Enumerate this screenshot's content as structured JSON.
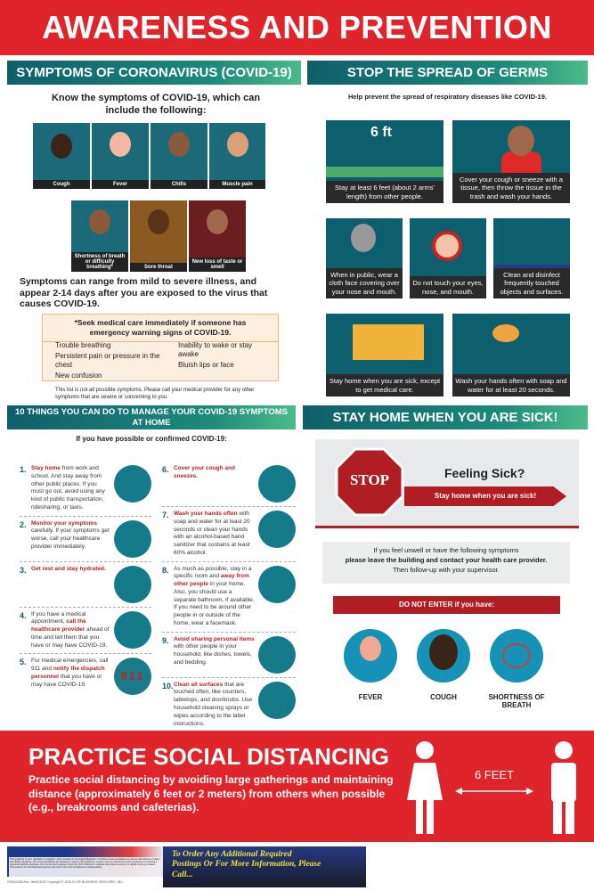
{
  "title": "AWARENESS AND PREVENTION",
  "symptoms": {
    "header": "SYMPTOMS OF CORONAVIRUS (COVID-19)",
    "intro": "Know the symptoms of COVID-19, which can include the following:",
    "tiles": [
      "Cough",
      "Fever",
      "Chills",
      "Muscle pain",
      "Shortness of breath or difficulty breathing*",
      "Sore throat",
      "New loss of taste or smell"
    ],
    "range_text": "Symptoms can range from mild to severe illness, and appear 2-14 days after you are exposed to the virus that causes COVID-19.",
    "warning_title": "*Seek medical care immediately if someone has emergency warning signs of COVID-19.",
    "warning_left": [
      "Trouble breathing",
      "Persistent pain or pressure in the chest",
      "New confusion"
    ],
    "warning_right": [
      "Inability to wake or stay awake",
      "Bluish lips or face"
    ],
    "note": "This list is not all possible symptoms. Please call your medical provider for any other symptoms that are severe or concerning to you."
  },
  "germs": {
    "header": "STOP THE SPREAD OF GERMS",
    "intro": "Help prevent the spread of respiratory diseases like COVID-19.",
    "six_ft": "6 ft",
    "tiles": [
      "Stay at least 6 feet (about 2 arms' length) from other people.",
      "Cover your cough or sneeze with a tissue, then throw the tissue in the trash and wash your hands.",
      "When in public, wear a cloth face covering over your nose and mouth.",
      "Do not touch your eyes, nose, and mouth.",
      "Clean and disinfect frequently touched objects and surfaces.",
      "Stay home when you are sick, except to get medical care.",
      "Wash your hands often with soap and water for at least 20 seconds."
    ]
  },
  "ten_things": {
    "header": "10 THINGS YOU CAN DO TO MANAGE YOUR COVID-19 SYMPTOMS AT HOME",
    "intro": "If you have possible or confirmed COVID-19:",
    "items": [
      {
        "n": "1.",
        "pre": "",
        "bold": "Stay home",
        "post": " from work and school. And stay away from other public places. If you must go out, avoid using any kind of public transportation, ridesharing, or taxis."
      },
      {
        "n": "2.",
        "pre": "",
        "bold": "Monitor your symptoms",
        "post": " carefully. If your symptoms get worse, call your healthcare provider immediately."
      },
      {
        "n": "3.",
        "pre": "",
        "bold": "Get rest and stay hydrated.",
        "post": ""
      },
      {
        "n": "4.",
        "pre": "If you have a medical appointment, ",
        "bold": "call the healthcare provider",
        "post": " ahead of time and tell them that you have or may have COVID-19."
      },
      {
        "n": "5.",
        "pre": "For medical emergencies, call 911 and ",
        "bold": "notify the dispatch personnel",
        "post": " that you have or may have COVID-19."
      },
      {
        "n": "6.",
        "pre": "",
        "bold": "Cover your cough and sneezes.",
        "post": ""
      },
      {
        "n": "7.",
        "pre": "",
        "bold": "Wash your hands often",
        "post": " with soap and water for at least 20 seconds or clean your hands with an alcohol-based hand sanitizer that contains at least 60% alcohol."
      },
      {
        "n": "8.",
        "pre": "As much as possible, stay in a specific room and ",
        "bold": "away from other people",
        "post": " in your home. Also, you should use a separate bathroom, if available. If you need to be around other people in or outside of the home, wear a facemask."
      },
      {
        "n": "9.",
        "pre": "",
        "bold": "Avoid sharing personal items",
        "post": " with other people in your household, like dishes, towels, and bedding."
      },
      {
        "n": "10.",
        "pre": "",
        "bold": "Clean all surfaces",
        "post": " that are touched often, like counters, tabletops, and doorknobs. Use household cleaning sprays or wipes according to the label instructions."
      }
    ],
    "nine_one_one": "911"
  },
  "stay_home": {
    "header": "STAY HOME WHEN YOU ARE SICK!",
    "stop": "STOP",
    "feeling_sick": "Feeling Sick?",
    "banner": "Stay home when you are sick!",
    "info_1": "If you feel unwell or have the following symptoms",
    "info_2": "please leave the building and contact your health care provider.",
    "info_3": "Then follow-up with your supervisor.",
    "do_not_enter": "DO NOT ENTER if you have:",
    "symptoms": [
      "FEVER",
      "COUGH",
      "SHORTNESS OF BREATH"
    ]
  },
  "distancing": {
    "title": "PRACTICE SOCIAL DISTANCING",
    "text": "Practice social distancing by avoiding large gatherings and maintaining distance (approximately 6 feet or 2 meters) from others when possible (e.g., breakrooms and cafeterias).",
    "six_feet": "6 FEET"
  },
  "footer": {
    "disclaimer": "This guidance is not a standard or regulation, and it creates no new legal obligations. It contains recommendations as well as descriptions of safety and health standards. The recommendations are advisory in nature, informational in content, and are intended to assist employers in providing a safe and healthful workplace. We recommend to always check the CDC Website for updated information as what is a rapidly evolving situation. This poster is for informational purposes only and is not to be considered a medical advice.",
    "code": "CRNV2436   Rev. 06/01/2020   Copyright © 2020 ELITE BUSINESS VENTURES, INC.",
    "order": "To Order Any Additional Required Postings Or For More Information, Please Call..."
  },
  "colors": {
    "red": "#e0242b",
    "teal": "#0f5f6b",
    "dark_red": "#b01e24"
  }
}
